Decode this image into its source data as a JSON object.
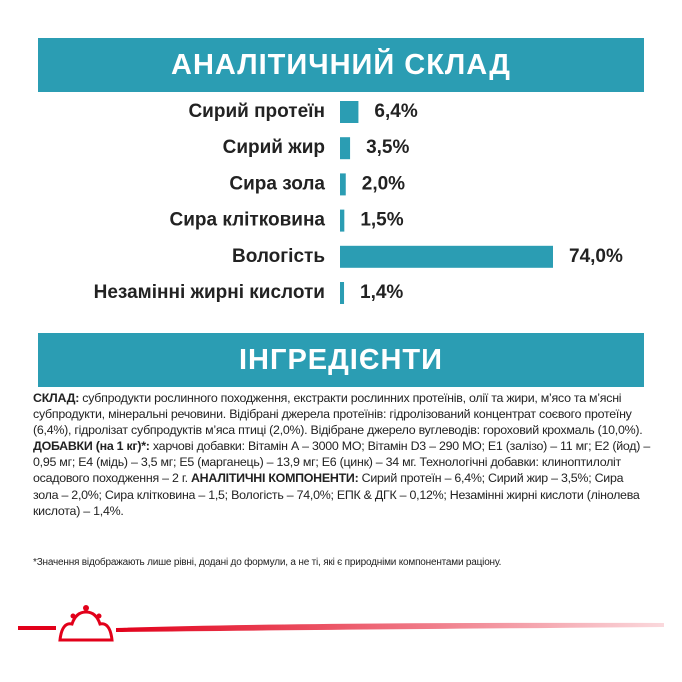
{
  "chart_data": {
    "type": "bar",
    "orientation": "horizontal",
    "title": "АНАЛІТИЧНИЙ СКЛАД",
    "categories": [
      "Сирий протеїн",
      "Сирий жир",
      "Сира зола",
      "Сира клітковина",
      "Вологість",
      "Незамінні жирні кислоти"
    ],
    "values": [
      6.4,
      3.5,
      2.0,
      1.5,
      74.0,
      1.4
    ],
    "value_labels": [
      "6,4%",
      "3,5%",
      "2,0%",
      "1,5%",
      "74,0%",
      "1,4%"
    ],
    "color": "#2b9db3"
  },
  "ingredients": {
    "title": "ІНГРЕДІЄНТИ",
    "sections": [
      {
        "label": "СКЛАД:",
        "text": "субпродукти рослинного походження, екстракти рослинних протеїнів, олії та жири, м’ясо та м’ясні субпродукти, мінеральні речовини. Відібрані джерела протеїнів: гідролізований концентрат соєвого протеїну (6,4%), гідролізат субпродуктів м’яса птиці (2,0%). Відібране джерело вуглеводів: гороховий крохмаль (10,0%)."
      },
      {
        "label": "ДОБАВКИ (на 1 кг)*:",
        "text": "харчові добавки: Вітамін А – 3000 МО; Вітамін D3 – 290 МО; E1 (залізо) – 11 мг; E2 (йод) – 0,95 мг; E4 (мідь) – 3,5 мг; E5 (марганець) – 13,9 мг; E6 (цинк) – 34 мг. Технологічні добавки: клиноптилоліт осадового походження – 2 г."
      },
      {
        "label": "АНАЛІТИЧНІ КОМПОНЕНТИ:",
        "text": "Сирий протеїн – 6,4%; Сирий жир – 3,5%; Сира зола – 2,0%; Сира клітковина – 1,5; Вологість – 74,0%; ЕПК & ДГК – 0,12%; Незамінні жирні кислоти (лінолева кислота) – 1,4%."
      }
    ],
    "footnote": "*Значення відображають лише рівні, додані до формули, а не ті, які є природніми компонентами раціону."
  }
}
